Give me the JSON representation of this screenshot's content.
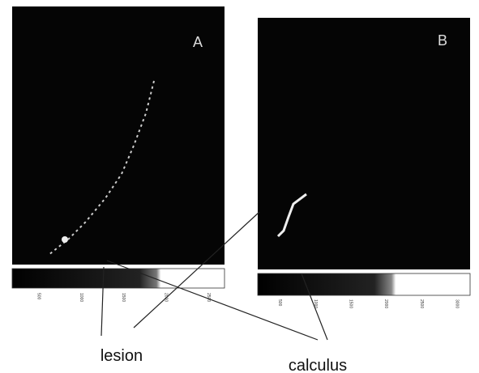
{
  "panels": [
    {
      "label": "A",
      "colorbar_ticks": [
        "500",
        "1000",
        "1500",
        "2000",
        "2500"
      ]
    },
    {
      "label": "B",
      "colorbar_ticks": [
        "500",
        "1000",
        "1500",
        "2000",
        "2500",
        "3000"
      ]
    }
  ],
  "annotations": {
    "lesion": "lesion",
    "calculus": "calculus"
  }
}
